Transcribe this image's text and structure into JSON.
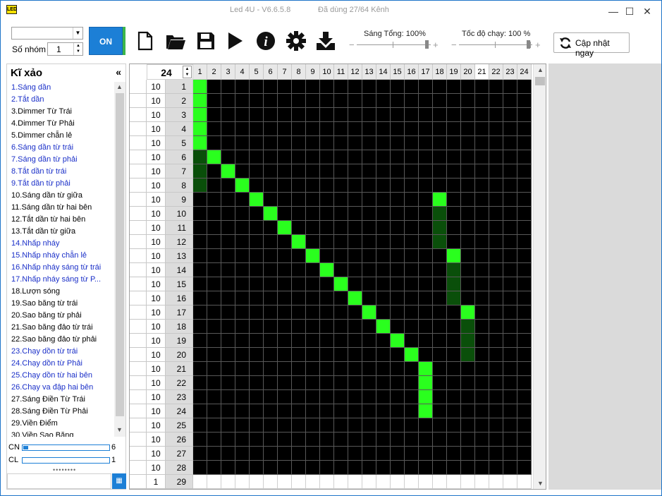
{
  "titlebar": {
    "logo": "LED",
    "title": "Led 4U - V6.6.5.8",
    "channels": "Đã dùng 27/64 Kênh",
    "minimize": "—",
    "maximize": "☐",
    "close": "✕"
  },
  "toolbar": {
    "combo_value": "",
    "group_label": "Số nhóm",
    "group_value": "1",
    "on_label": "ON",
    "tools": [
      "new-file-icon",
      "open-folder-icon",
      "save-icon",
      "play-icon",
      "info-icon",
      "settings-icon",
      "download-icon"
    ],
    "brightness_label": "Sáng Tổng: 100%",
    "speed_label": "Tốc độ chạy: 100 %",
    "update_label": "Cập nhật ngay"
  },
  "effects_panel": {
    "title": "Kĩ xảo",
    "collapse": "«",
    "items": [
      {
        "label": "1.Sáng dần",
        "style": "blue"
      },
      {
        "label": "2.Tắt dần",
        "style": "blue"
      },
      {
        "label": "3.Dimmer Từ Trái",
        "style": ""
      },
      {
        "label": "4.Dimmer Từ Phải",
        "style": ""
      },
      {
        "label": "5.Dimmer chẵn lẻ",
        "style": ""
      },
      {
        "label": "6.Sáng dần từ trái",
        "style": "blue"
      },
      {
        "label": "7.Sáng dần từ phải",
        "style": "blue"
      },
      {
        "label": "8.Tắt dần từ trái",
        "style": "blue"
      },
      {
        "label": "9.Tắt dần từ phải",
        "style": "blue"
      },
      {
        "label": "10.Sáng dần từ giữa",
        "style": ""
      },
      {
        "label": "11.Sáng dần từ hai bên",
        "style": ""
      },
      {
        "label": "12.Tắt dần từ hai bên",
        "style": ""
      },
      {
        "label": "13.Tắt dần từ giữa",
        "style": ""
      },
      {
        "label": "14.Nhấp nháy",
        "style": "blue"
      },
      {
        "label": "15.Nhấp nháy chẵn lẻ",
        "style": "blue"
      },
      {
        "label": "16.Nhấp nháy sáng từ trái",
        "style": "blue"
      },
      {
        "label": "17.Nhấp nháy sáng từ P...",
        "style": "blue"
      },
      {
        "label": "18.Lượn sóng",
        "style": ""
      },
      {
        "label": "19.Sao băng từ trái",
        "style": ""
      },
      {
        "label": "20.Sao băng từ phải",
        "style": ""
      },
      {
        "label": "21.Sao băng đảo từ trái",
        "style": ""
      },
      {
        "label": "22.Sao băng đảo từ phải",
        "style": ""
      },
      {
        "label": "23.Chạy dồn từ trái",
        "style": "blue"
      },
      {
        "label": "24.Chạy dồn từ Phải",
        "style": "blue"
      },
      {
        "label": "25.Chạy dồn từ hai bên",
        "style": "blue"
      },
      {
        "label": "26.Chạy va đập hai bên",
        "style": "blue"
      },
      {
        "label": "27.Sáng Điền Từ Trái",
        "style": ""
      },
      {
        "label": "28.Sáng Điền Từ Phải",
        "style": ""
      },
      {
        "label": "29.Viền Điểm",
        "style": ""
      },
      {
        "label": "30.Viền Sao Băng",
        "style": ""
      }
    ],
    "cn_label": "CN",
    "cn_value": "6",
    "cn_fraction": 0.06,
    "cl_label": "CL",
    "cl_value": "1",
    "cl_fraction": 0.0,
    "dots": "••••••••",
    "bottom_icon": "grid-view-icon"
  },
  "grid": {
    "channel_count": "24",
    "columns": [
      "1",
      "2",
      "3",
      "4",
      "5",
      "6",
      "7",
      "8",
      "9",
      "10",
      "11",
      "12",
      "13",
      "14",
      "15",
      "16",
      "17",
      "18",
      "19",
      "20",
      "21",
      "22",
      "23",
      "24"
    ],
    "current_column": 21,
    "colors": {
      "on": "#2aff1e",
      "dim": "#0a4f0a",
      "off": "#000000"
    },
    "rows": [
      {
        "num": "1",
        "val": "10",
        "on": [
          1
        ],
        "dim": []
      },
      {
        "num": "2",
        "val": "10",
        "on": [
          1
        ],
        "dim": []
      },
      {
        "num": "3",
        "val": "10",
        "on": [
          1
        ],
        "dim": []
      },
      {
        "num": "4",
        "val": "10",
        "on": [
          1
        ],
        "dim": []
      },
      {
        "num": "5",
        "val": "10",
        "on": [
          1
        ],
        "dim": []
      },
      {
        "num": "6",
        "val": "10",
        "on": [
          2
        ],
        "dim": [
          1
        ]
      },
      {
        "num": "7",
        "val": "10",
        "on": [
          3
        ],
        "dim": [
          1
        ]
      },
      {
        "num": "8",
        "val": "10",
        "on": [
          4
        ],
        "dim": [
          1
        ]
      },
      {
        "num": "9",
        "val": "10",
        "on": [
          5,
          18
        ],
        "dim": []
      },
      {
        "num": "10",
        "val": "10",
        "on": [
          6
        ],
        "dim": [
          18
        ]
      },
      {
        "num": "11",
        "val": "10",
        "on": [
          7
        ],
        "dim": [
          18
        ]
      },
      {
        "num": "12",
        "val": "10",
        "on": [
          8
        ],
        "dim": [
          18
        ]
      },
      {
        "num": "13",
        "val": "10",
        "on": [
          9,
          19
        ],
        "dim": []
      },
      {
        "num": "14",
        "val": "10",
        "on": [
          10
        ],
        "dim": [
          19
        ]
      },
      {
        "num": "15",
        "val": "10",
        "on": [
          11
        ],
        "dim": [
          19
        ]
      },
      {
        "num": "16",
        "val": "10",
        "on": [
          12
        ],
        "dim": [
          19
        ]
      },
      {
        "num": "17",
        "val": "10",
        "on": [
          13,
          20
        ],
        "dim": []
      },
      {
        "num": "18",
        "val": "10",
        "on": [
          14
        ],
        "dim": [
          20
        ]
      },
      {
        "num": "19",
        "val": "10",
        "on": [
          15
        ],
        "dim": [
          20
        ]
      },
      {
        "num": "20",
        "val": "10",
        "on": [
          16
        ],
        "dim": [
          20
        ]
      },
      {
        "num": "21",
        "val": "10",
        "on": [
          17
        ],
        "dim": []
      },
      {
        "num": "22",
        "val": "10",
        "on": [
          17
        ],
        "dim": []
      },
      {
        "num": "23",
        "val": "10",
        "on": [
          17
        ],
        "dim": []
      },
      {
        "num": "24",
        "val": "10",
        "on": [
          17
        ],
        "dim": []
      },
      {
        "num": "25",
        "val": "10",
        "on": [],
        "dim": []
      },
      {
        "num": "26",
        "val": "10",
        "on": [],
        "dim": []
      },
      {
        "num": "27",
        "val": "10",
        "on": [],
        "dim": []
      },
      {
        "num": "28",
        "val": "10",
        "on": [],
        "dim": []
      },
      {
        "num": "29",
        "val": "1",
        "on": [],
        "dim": [],
        "blank": true
      }
    ]
  }
}
